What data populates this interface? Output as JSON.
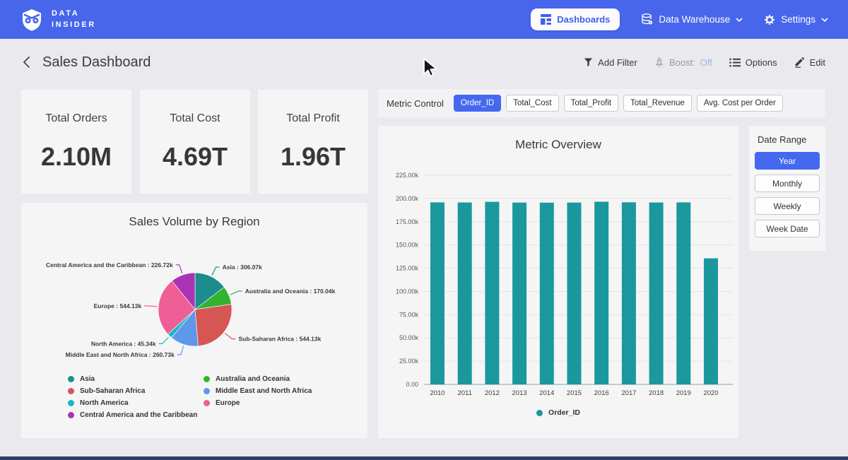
{
  "nav": {
    "brand_line1": "DATA",
    "brand_line2": "INSIDER",
    "dashboards_label": "Dashboards",
    "data_warehouse_label": "Data Warehouse",
    "settings_label": "Settings"
  },
  "page": {
    "title": "Sales Dashboard",
    "add_filter_label": "Add Filter",
    "boost_label": "Boost:",
    "boost_value": "Off",
    "options_label": "Options",
    "edit_label": "Edit"
  },
  "kpis": [
    {
      "label": "Total Orders",
      "value": "2.10M"
    },
    {
      "label": "Total Cost",
      "value": "4.69T"
    },
    {
      "label": "Total Profit",
      "value": "1.96T"
    }
  ],
  "metric_control": {
    "label": "Metric Control",
    "options": [
      "Order_ID",
      "Total_Cost",
      "Total_Profit",
      "Total_Revenue",
      "Avg. Cost per Order"
    ],
    "selected": "Order_ID"
  },
  "date_range": {
    "label": "Date Range",
    "options": [
      "Year",
      "Monthly",
      "Weekly",
      "Week Date"
    ],
    "selected": "Year"
  },
  "colors": {
    "nav_blue": "#4766eb",
    "accent_selected": "#4468ee",
    "bar_teal": "#1b989d",
    "boost_off": "#9fb7ef",
    "page_bg": "#e9e9ee",
    "card_bg": "#f5f5f5"
  },
  "chart_data": [
    {
      "type": "pie",
      "title": "Sales Volume by Region",
      "labels": [
        "Asia",
        "Australia and Oceania",
        "Sub-Saharan Africa",
        "Middle East and North Africa",
        "North America",
        "Europe",
        "Central America and the Caribbean"
      ],
      "values": [
        306070,
        170040,
        544130,
        260730,
        45340,
        544130,
        226720
      ],
      "display_values": [
        "306.07k",
        "170.04k",
        "544.13k",
        "260.73k",
        "45.34k",
        "544.13k",
        "226.72k"
      ],
      "colors": [
        "#1d8c8f",
        "#30b42f",
        "#d65654",
        "#5f97ea",
        "#17b8c9",
        "#ef5e94",
        "#a834b5"
      ],
      "legend_columns": [
        [
          0,
          2,
          4,
          6
        ],
        [
          1,
          3,
          5
        ]
      ],
      "legend_position": "bottom"
    },
    {
      "type": "bar",
      "title": "Metric Overview",
      "categories": [
        "2010",
        "2011",
        "2012",
        "2013",
        "2014",
        "2015",
        "2016",
        "2017",
        "2018",
        "2019",
        "2020"
      ],
      "series": [
        {
          "name": "Order_ID",
          "values": [
            195800,
            195700,
            196400,
            195600,
            195500,
            195600,
            196500,
            195900,
            195700,
            195800,
            135600
          ]
        }
      ],
      "ylim": [
        0,
        225000
      ],
      "ytick_step": 25000,
      "ytick_labels": [
        "0.00",
        "25.00k",
        "50.00k",
        "75.00k",
        "100.00k",
        "125.00k",
        "150.00k",
        "175.00k",
        "200.00k",
        "225.00k"
      ],
      "bar_color": "#1b989d",
      "legend": [
        "Order_ID"
      ],
      "legend_position": "bottom",
      "grid": true
    }
  ]
}
